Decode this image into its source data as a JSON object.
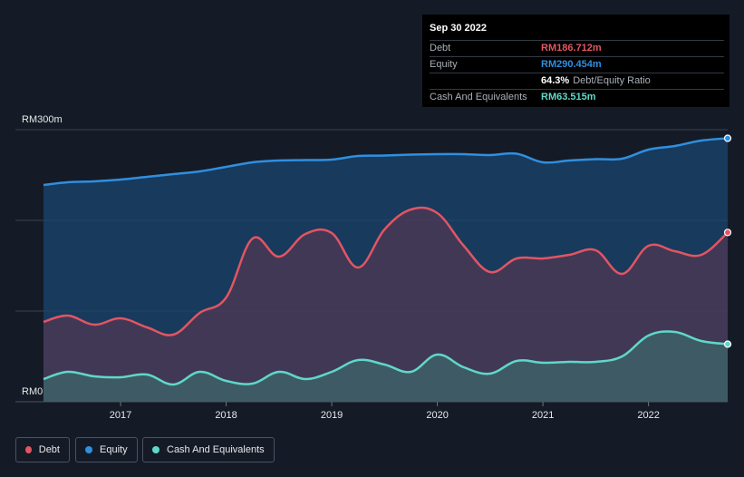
{
  "tooltip": {
    "date": "Sep 30 2022",
    "debt_label": "Debt",
    "debt_value": "RM186.712m",
    "equity_label": "Equity",
    "equity_value": "RM290.454m",
    "ratio_value": "64.3%",
    "ratio_label": "Debt/Equity Ratio",
    "cash_label": "Cash And Equivalents",
    "cash_value": "RM63.515m"
  },
  "legend": [
    {
      "label": "Debt",
      "color": "#e25563"
    },
    {
      "label": "Equity",
      "color": "#2f8fe0"
    },
    {
      "label": "Cash And Equivalents",
      "color": "#5fd8c8"
    }
  ],
  "chart_data": {
    "type": "area",
    "title": "",
    "xlabel": "",
    "ylabel": "",
    "ylim": [
      0,
      300
    ],
    "y_tick_labels": [
      "RM0",
      "RM300m"
    ],
    "x_tick_labels": [
      "2017",
      "2018",
      "2019",
      "2020",
      "2021",
      "2022"
    ],
    "x_ticks": [
      2017,
      2018,
      2019,
      2020,
      2021,
      2022
    ],
    "xlim": [
      2016.27,
      2022.75
    ],
    "colors": {
      "debt": "#e25563",
      "equity": "#2f8fe0",
      "cash": "#5fd8c8"
    },
    "series": [
      {
        "name": "Equity",
        "key": "equity",
        "points": [
          [
            2016.27,
            239
          ],
          [
            2016.5,
            242
          ],
          [
            2016.75,
            243
          ],
          [
            2017.0,
            245
          ],
          [
            2017.25,
            248
          ],
          [
            2017.5,
            251
          ],
          [
            2017.75,
            254
          ],
          [
            2018.0,
            259
          ],
          [
            2018.25,
            264
          ],
          [
            2018.5,
            266
          ],
          [
            2018.75,
            266.5
          ],
          [
            2019.0,
            267
          ],
          [
            2019.25,
            271
          ],
          [
            2019.5,
            271.5
          ],
          [
            2019.75,
            272.5
          ],
          [
            2020.0,
            273
          ],
          [
            2020.25,
            273
          ],
          [
            2020.5,
            272
          ],
          [
            2020.75,
            273.5
          ],
          [
            2021.0,
            264
          ],
          [
            2021.25,
            266
          ],
          [
            2021.5,
            267.5
          ],
          [
            2021.75,
            268
          ],
          [
            2022.0,
            278
          ],
          [
            2022.25,
            282
          ],
          [
            2022.5,
            288
          ],
          [
            2022.75,
            290.5
          ]
        ]
      },
      {
        "name": "Debt",
        "key": "debt",
        "points": [
          [
            2016.27,
            88
          ],
          [
            2016.5,
            95
          ],
          [
            2016.75,
            85
          ],
          [
            2017.0,
            92
          ],
          [
            2017.25,
            82
          ],
          [
            2017.5,
            74
          ],
          [
            2017.75,
            98
          ],
          [
            2018.0,
            115
          ],
          [
            2018.25,
            180
          ],
          [
            2018.5,
            160
          ],
          [
            2018.75,
            185
          ],
          [
            2019.0,
            186
          ],
          [
            2019.25,
            148
          ],
          [
            2019.5,
            190
          ],
          [
            2019.75,
            212
          ],
          [
            2020.0,
            208
          ],
          [
            2020.25,
            172
          ],
          [
            2020.5,
            143
          ],
          [
            2020.75,
            158
          ],
          [
            2021.0,
            158
          ],
          [
            2021.25,
            162
          ],
          [
            2021.5,
            167
          ],
          [
            2021.75,
            141
          ],
          [
            2022.0,
            172
          ],
          [
            2022.25,
            166
          ],
          [
            2022.5,
            162
          ],
          [
            2022.75,
            186.7
          ]
        ]
      },
      {
        "name": "Cash And Equivalents",
        "key": "cash",
        "points": [
          [
            2016.27,
            25
          ],
          [
            2016.5,
            33
          ],
          [
            2016.75,
            28
          ],
          [
            2017.0,
            27
          ],
          [
            2017.25,
            30
          ],
          [
            2017.5,
            19
          ],
          [
            2017.75,
            33
          ],
          [
            2018.0,
            23
          ],
          [
            2018.25,
            20
          ],
          [
            2018.5,
            33
          ],
          [
            2018.75,
            25
          ],
          [
            2019.0,
            33
          ],
          [
            2019.25,
            46
          ],
          [
            2019.5,
            41
          ],
          [
            2019.75,
            33
          ],
          [
            2020.0,
            52
          ],
          [
            2020.25,
            38
          ],
          [
            2020.5,
            31
          ],
          [
            2020.75,
            45
          ],
          [
            2021.0,
            43
          ],
          [
            2021.25,
            44
          ],
          [
            2021.5,
            44
          ],
          [
            2021.75,
            50
          ],
          [
            2022.0,
            73
          ],
          [
            2022.25,
            77
          ],
          [
            2022.5,
            67
          ],
          [
            2022.75,
            63.5
          ]
        ]
      }
    ]
  }
}
